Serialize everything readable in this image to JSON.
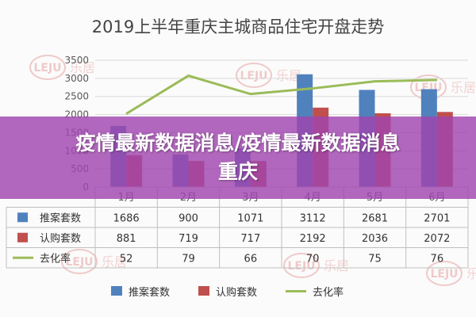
{
  "banner": {
    "text": "疫情最新数据消息/疫情最新数据消息重庆"
  },
  "watermark": {
    "logo_text": "LEJU",
    "brand_text": "乐居"
  },
  "chart_data": {
    "type": "bar",
    "title": "2019上半年重庆主城商品住宅开盘走势",
    "categories": [
      "1月",
      "2月",
      "3月",
      "4月",
      "5月",
      "6月"
    ],
    "y_ticks": [
      "3500",
      "3000",
      "2500",
      "2000",
      "1500",
      "1000",
      "500",
      "0"
    ],
    "ylim": [
      0,
      3500
    ],
    "grid": true,
    "legend_position": "bottom",
    "series": [
      {
        "name": "推案套数",
        "type": "bar",
        "axis": "left",
        "color": "#4f81bd",
        "values": [
          1686,
          900,
          1071,
          3112,
          2681,
          2701
        ]
      },
      {
        "name": "认购套数",
        "type": "bar",
        "axis": "left",
        "color": "#c0504d",
        "values": [
          881,
          719,
          717,
          2192,
          2036,
          2072
        ]
      },
      {
        "name": "去化率",
        "type": "line",
        "axis": "right",
        "color": "#9bbb59",
        "values": [
          52,
          79,
          66,
          70,
          75,
          76
        ]
      }
    ],
    "secondary_ylim": [
      0,
      90
    ]
  }
}
